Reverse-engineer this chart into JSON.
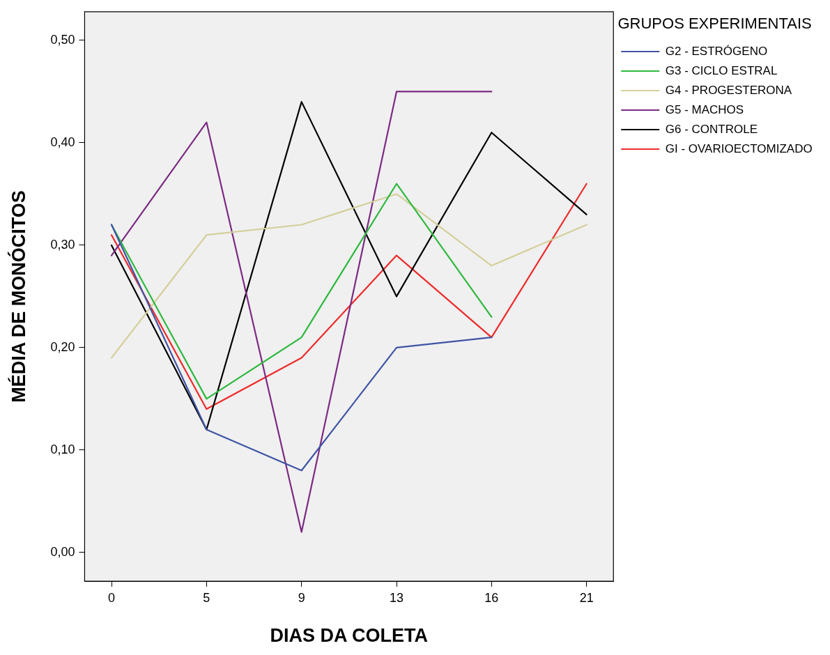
{
  "chart_data": {
    "type": "line",
    "xlabel": "DIAS DA COLETA",
    "ylabel": "MÉDIA DE MONÓCITOS",
    "legend_title": "GRUPOS EXPERIMENTAIS",
    "categories": [
      "0",
      "5",
      "9",
      "13",
      "16",
      "21"
    ],
    "ylim": [
      -0.028,
      0.528
    ],
    "yticks": [
      {
        "value": 0,
        "label": "0,00"
      },
      {
        "value": 0.1,
        "label": "0,10"
      },
      {
        "value": 0.2,
        "label": "0,20"
      },
      {
        "value": 0.3,
        "label": "0,30"
      },
      {
        "value": 0.4,
        "label": "0,40"
      },
      {
        "value": 0.5,
        "label": "0,50"
      }
    ],
    "series": [
      {
        "name": "G2 - ESTRÓGENO",
        "color": "#3f54a5",
        "values": [
          0.32,
          0.12,
          0.08,
          0.2,
          0.21,
          null
        ]
      },
      {
        "name": "G3 - CICLO ESTRAL",
        "color": "#2db83d",
        "values": [
          0.32,
          0.15,
          0.21,
          0.36,
          0.23,
          null
        ]
      },
      {
        "name": "G4 - PROGESTERONA",
        "color": "#d4cf9a",
        "values": [
          0.19,
          0.31,
          0.32,
          0.35,
          0.28,
          0.32
        ]
      },
      {
        "name": "G5 - MACHOS",
        "color": "#7b2a82",
        "values": [
          0.29,
          0.42,
          0.02,
          0.45,
          0.45,
          null
        ]
      },
      {
        "name": "G6 - CONTROLE",
        "color": "#000000",
        "values": [
          0.3,
          0.12,
          0.44,
          0.25,
          0.41,
          0.33
        ]
      },
      {
        "name": "GI - OVARIOECTOMIZADO",
        "color": "#ee2a2a",
        "values": [
          0.31,
          0.14,
          0.19,
          0.29,
          0.21,
          0.36
        ]
      }
    ],
    "grid": false,
    "legend": "right",
    "marker": "none",
    "line_style": "solid"
  }
}
